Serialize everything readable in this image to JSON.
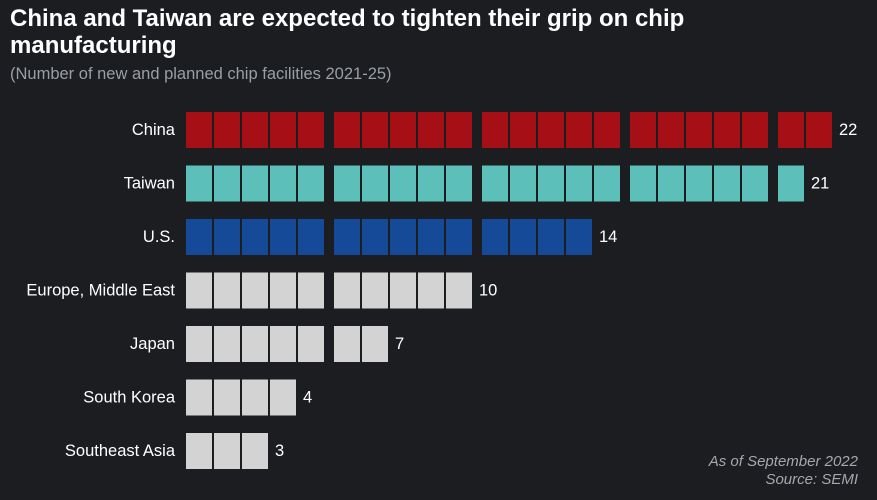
{
  "chart_data": {
    "type": "bar",
    "title": "China and Taiwan are expected to tighten their grip on chip manufacturing",
    "subtitle": "(Number of new and planned chip facilities 2021-25)",
    "categories": [
      "China",
      "Taiwan",
      "U.S.",
      "Europe, Middle East",
      "Japan",
      "South Korea",
      "Southeast Asia"
    ],
    "values": [
      22,
      21,
      14,
      10,
      7,
      4,
      3
    ],
    "colors": [
      "#a50f15",
      "#5dbfb9",
      "#154a98",
      "#d3d3d3",
      "#d3d3d3",
      "#d3d3d3",
      "#d3d3d3"
    ],
    "xlabel": "",
    "ylabel": "",
    "grid": false,
    "legend": "none"
  },
  "footer": {
    "date_note": "As of September 2022",
    "source": "Source: SEMI"
  },
  "colors": {
    "background": "#1b1d21",
    "text": "#ffffff",
    "muted_text": "#9a9ea6"
  }
}
